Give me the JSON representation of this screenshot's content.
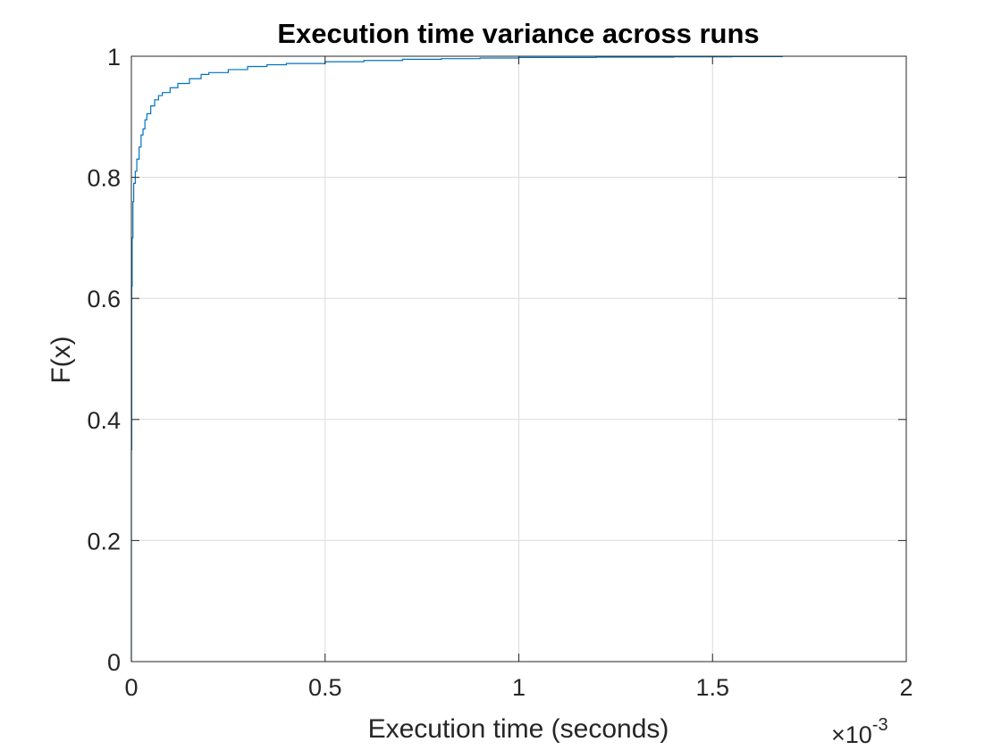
{
  "chart_data": {
    "type": "line",
    "title": "Execution time variance across runs",
    "xlabel": "Execution time (seconds)",
    "ylabel": "F(x)",
    "x_exponent_label": {
      "times": "×10",
      "power": "-3"
    },
    "xlim": [
      0,
      0.002
    ],
    "ylim": [
      0,
      1
    ],
    "xticks": [
      0,
      0.0005,
      0.001,
      0.0015,
      0.002
    ],
    "xtick_labels": [
      "0",
      "0.5",
      "1",
      "1.5",
      "2"
    ],
    "yticks": [
      0,
      0.2,
      0.4,
      0.6,
      0.8,
      1
    ],
    "ytick_labels": [
      "0",
      "0.2",
      "0.4",
      "0.6",
      "0.8",
      "1"
    ],
    "grid": true,
    "legend": "none",
    "series": [
      {
        "color": "#0072BD",
        "x": [
          0,
          0,
          1e-06,
          2e-06,
          4e-06,
          6e-06,
          1e-05,
          1.4e-05,
          2e-05,
          2.5e-05,
          3e-05,
          3.5e-05,
          4e-05,
          5e-05,
          6e-05,
          7e-05,
          8e-05,
          0.0001,
          0.00012,
          0.00015,
          0.00018,
          0.0002,
          0.00025,
          0.0003,
          0.00035,
          0.0004,
          0.0005,
          0.0006,
          0.0007,
          0.0008,
          0.0009,
          0.001,
          0.0012,
          0.0014,
          0.00155,
          0.00168
        ],
        "y": [
          0,
          0.35,
          0.62,
          0.7,
          0.76,
          0.79,
          0.81,
          0.83,
          0.85,
          0.87,
          0.88,
          0.895,
          0.905,
          0.918,
          0.928,
          0.935,
          0.94,
          0.948,
          0.955,
          0.963,
          0.97,
          0.973,
          0.978,
          0.983,
          0.986,
          0.988,
          0.991,
          0.993,
          0.995,
          0.996,
          0.997,
          0.998,
          0.9985,
          0.999,
          0.9995,
          1.0
        ]
      }
    ]
  }
}
